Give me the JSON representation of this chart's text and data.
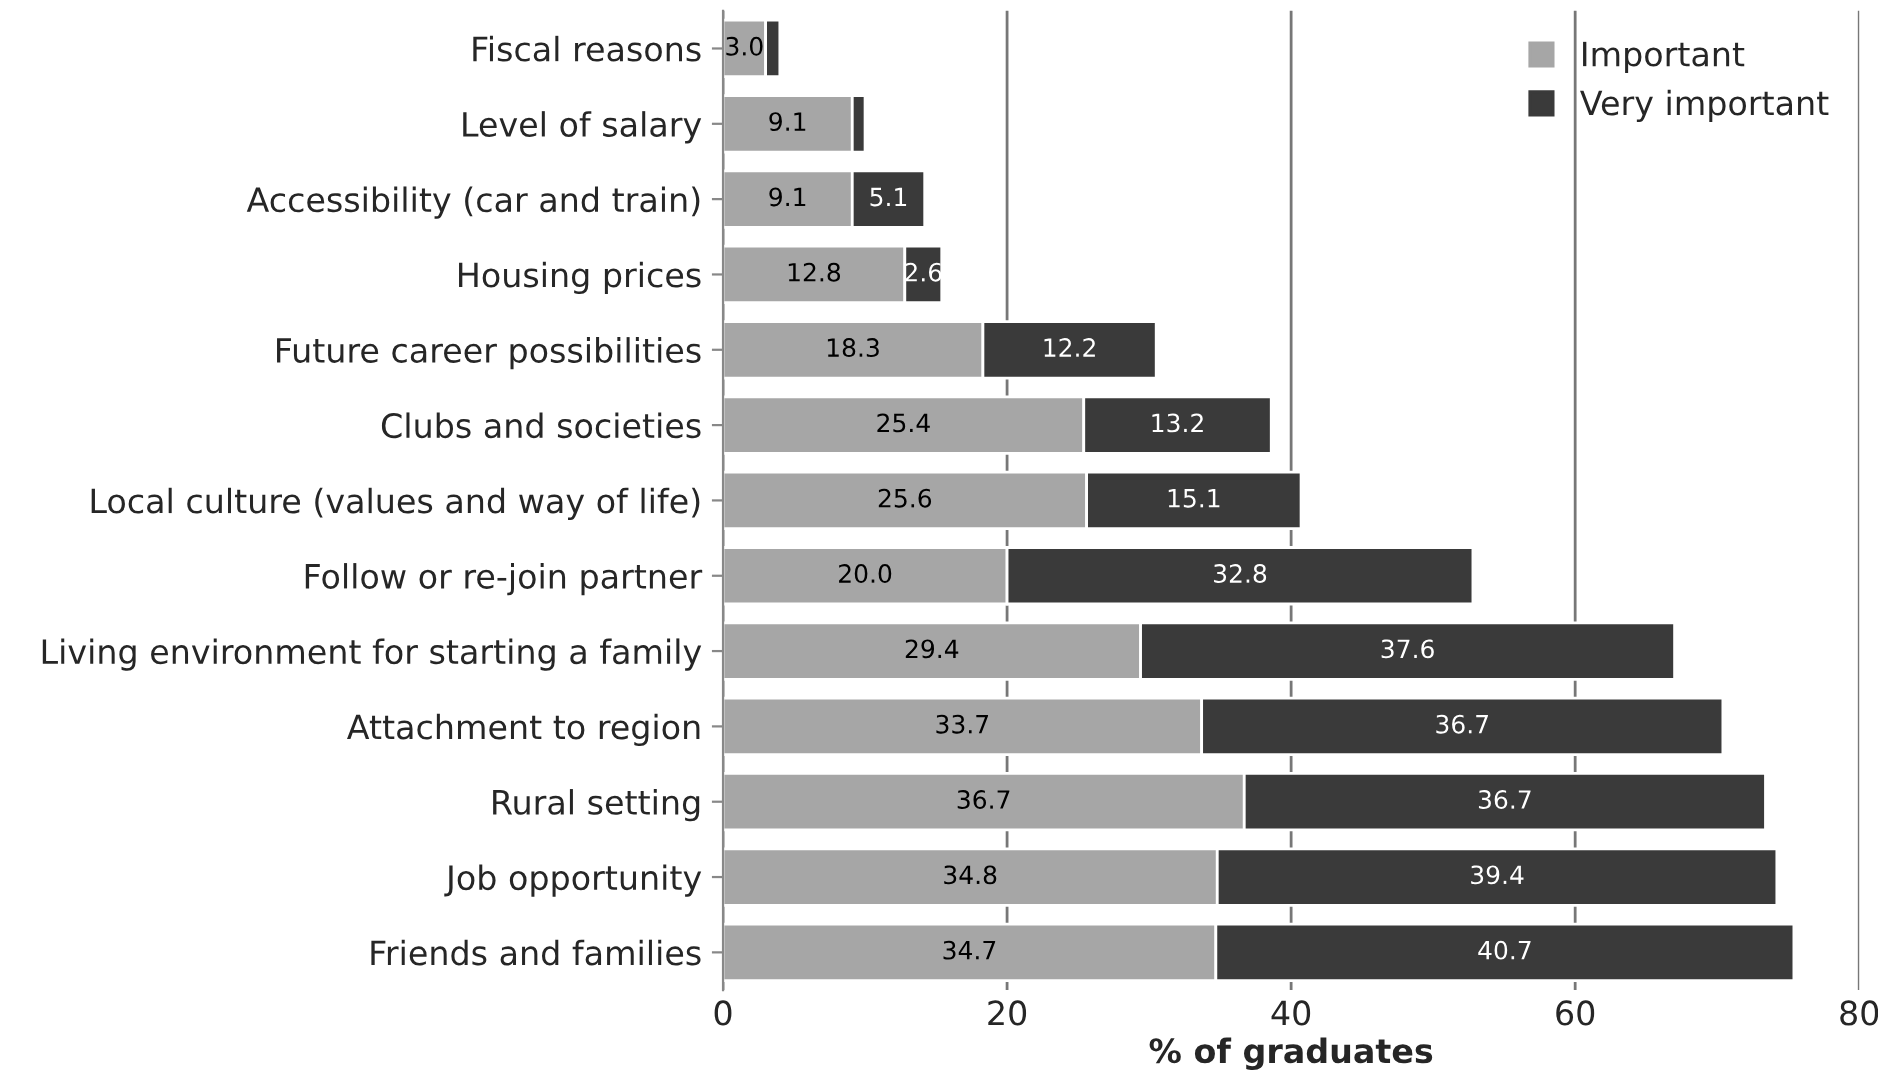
{
  "chart_data": {
    "type": "bar",
    "orientation": "horizontal",
    "stacked": true,
    "xlabel": "% of graduates",
    "categories": [
      "Fiscal reasons",
      "Level of salary",
      "Accessibility (car and train)",
      "Housing prices",
      "Future career possibilities",
      "Clubs and societies",
      "Local culture (values and way of life)",
      "Follow or re-join partner",
      "Living environment for starting a family",
      "Attachment to region",
      "Rural setting",
      "Job opportunity",
      "Friends and families"
    ],
    "series": [
      {
        "name": "Important",
        "color": "#a6a6a6",
        "values": [
          3.0,
          9.1,
          9.1,
          12.8,
          18.3,
          25.4,
          25.6,
          20.0,
          29.4,
          33.7,
          36.7,
          34.8,
          34.7
        ],
        "value_labels": [
          "3.0",
          "9.1",
          "9.1",
          "12.8",
          "18.3",
          "25.4",
          "25.6",
          "20.0",
          "29.4",
          "33.7",
          "36.7",
          "34.8",
          "34.7"
        ]
      },
      {
        "name": "Very important",
        "color": "#3a3a3a",
        "values": [
          1.0,
          0.9,
          5.1,
          2.6,
          12.2,
          13.2,
          15.1,
          32.8,
          37.6,
          36.7,
          36.7,
          39.4,
          40.7
        ],
        "value_labels": [
          null,
          null,
          "5.1",
          "2.6",
          "12.2",
          "13.2",
          "15.1",
          "32.8",
          "37.6",
          "36.7",
          "36.7",
          "39.4",
          "40.7"
        ]
      }
    ],
    "xlim": [
      0,
      80
    ],
    "xticks": [
      0,
      20,
      40,
      60,
      80
    ],
    "grid": "x",
    "legend": "top right"
  }
}
